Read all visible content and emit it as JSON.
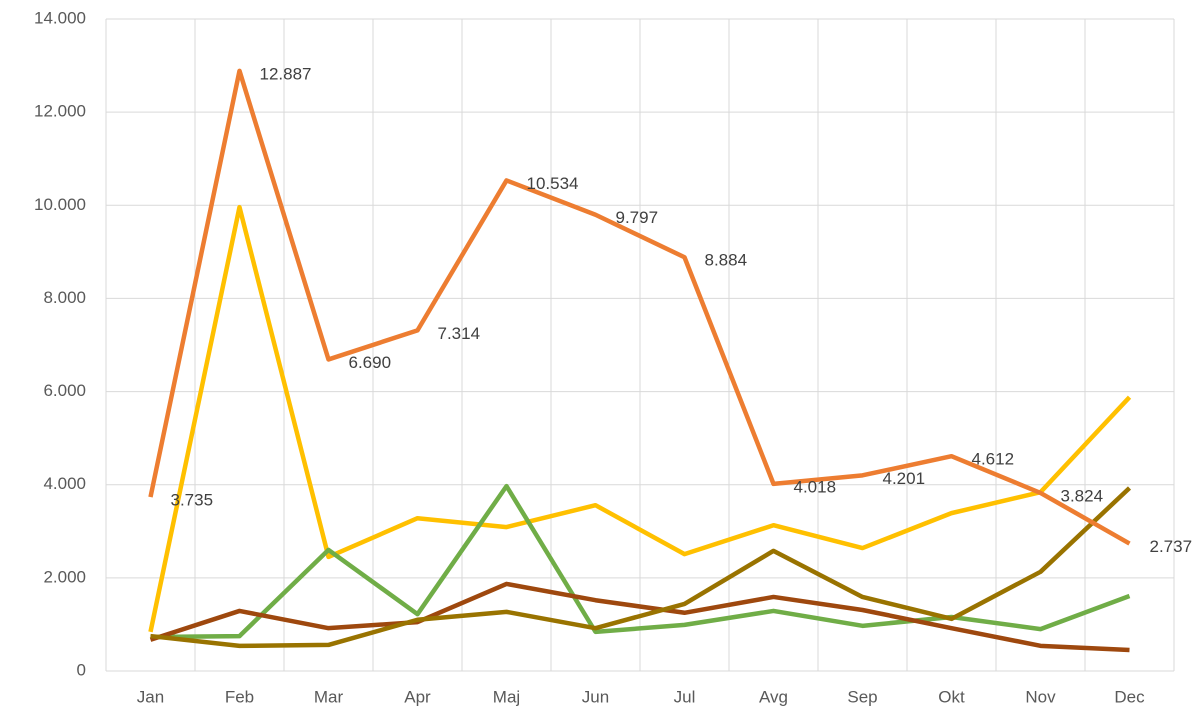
{
  "chart_data": {
    "type": "line",
    "categories": [
      "Jan",
      "Feb",
      "Mar",
      "Apr",
      "Maj",
      "Jun",
      "Jul",
      "Avg",
      "Sep",
      "Okt",
      "Nov",
      "Dec"
    ],
    "series": [
      {
        "color": "#FFC000",
        "values": [
          840,
          9960,
          2450,
          3280,
          3090,
          3560,
          2510,
          3130,
          2640,
          3390,
          3840,
          5880
        ]
      },
      {
        "color": "#70AD47",
        "values": [
          730,
          750,
          2600,
          1220,
          3970,
          840,
          990,
          1290,
          970,
          1160,
          900,
          1610
        ]
      },
      {
        "color": "#9E480E",
        "values": [
          670,
          1290,
          920,
          1050,
          1870,
          1520,
          1250,
          1590,
          1310,
          920,
          540,
          450
        ]
      },
      {
        "color": "#997300",
        "values": [
          750,
          540,
          560,
          1100,
          1270,
          920,
          1440,
          2580,
          1590,
          1120,
          2130,
          3930
        ]
      },
      {
        "color": "#ED7D31",
        "values": [
          3735,
          12887,
          6690,
          7314,
          10534,
          9797,
          8884,
          4018,
          4201,
          4612,
          3824,
          2737
        ],
        "value_labels": [
          "3.735",
          "12.887",
          "6.690",
          "7.314",
          "10.534",
          "9.797",
          "8.884",
          "4.018",
          "4.201",
          "4.612",
          "3.824",
          "2.737"
        ]
      }
    ],
    "ylim": [
      0,
      14000
    ],
    "yticks": [
      0,
      {
        "value": 2000,
        "label": "2.000"
      },
      {
        "value": 4000,
        "label": "4.000"
      },
      {
        "value": 6000,
        "label": "6.000"
      },
      {
        "value": 8000,
        "label": "8.000"
      },
      {
        "value": 10000,
        "label": "10.000"
      },
      {
        "value": 12000,
        "label": "12.000"
      },
      {
        "value": 14000,
        "label": "14.000"
      }
    ],
    "grid": true
  }
}
